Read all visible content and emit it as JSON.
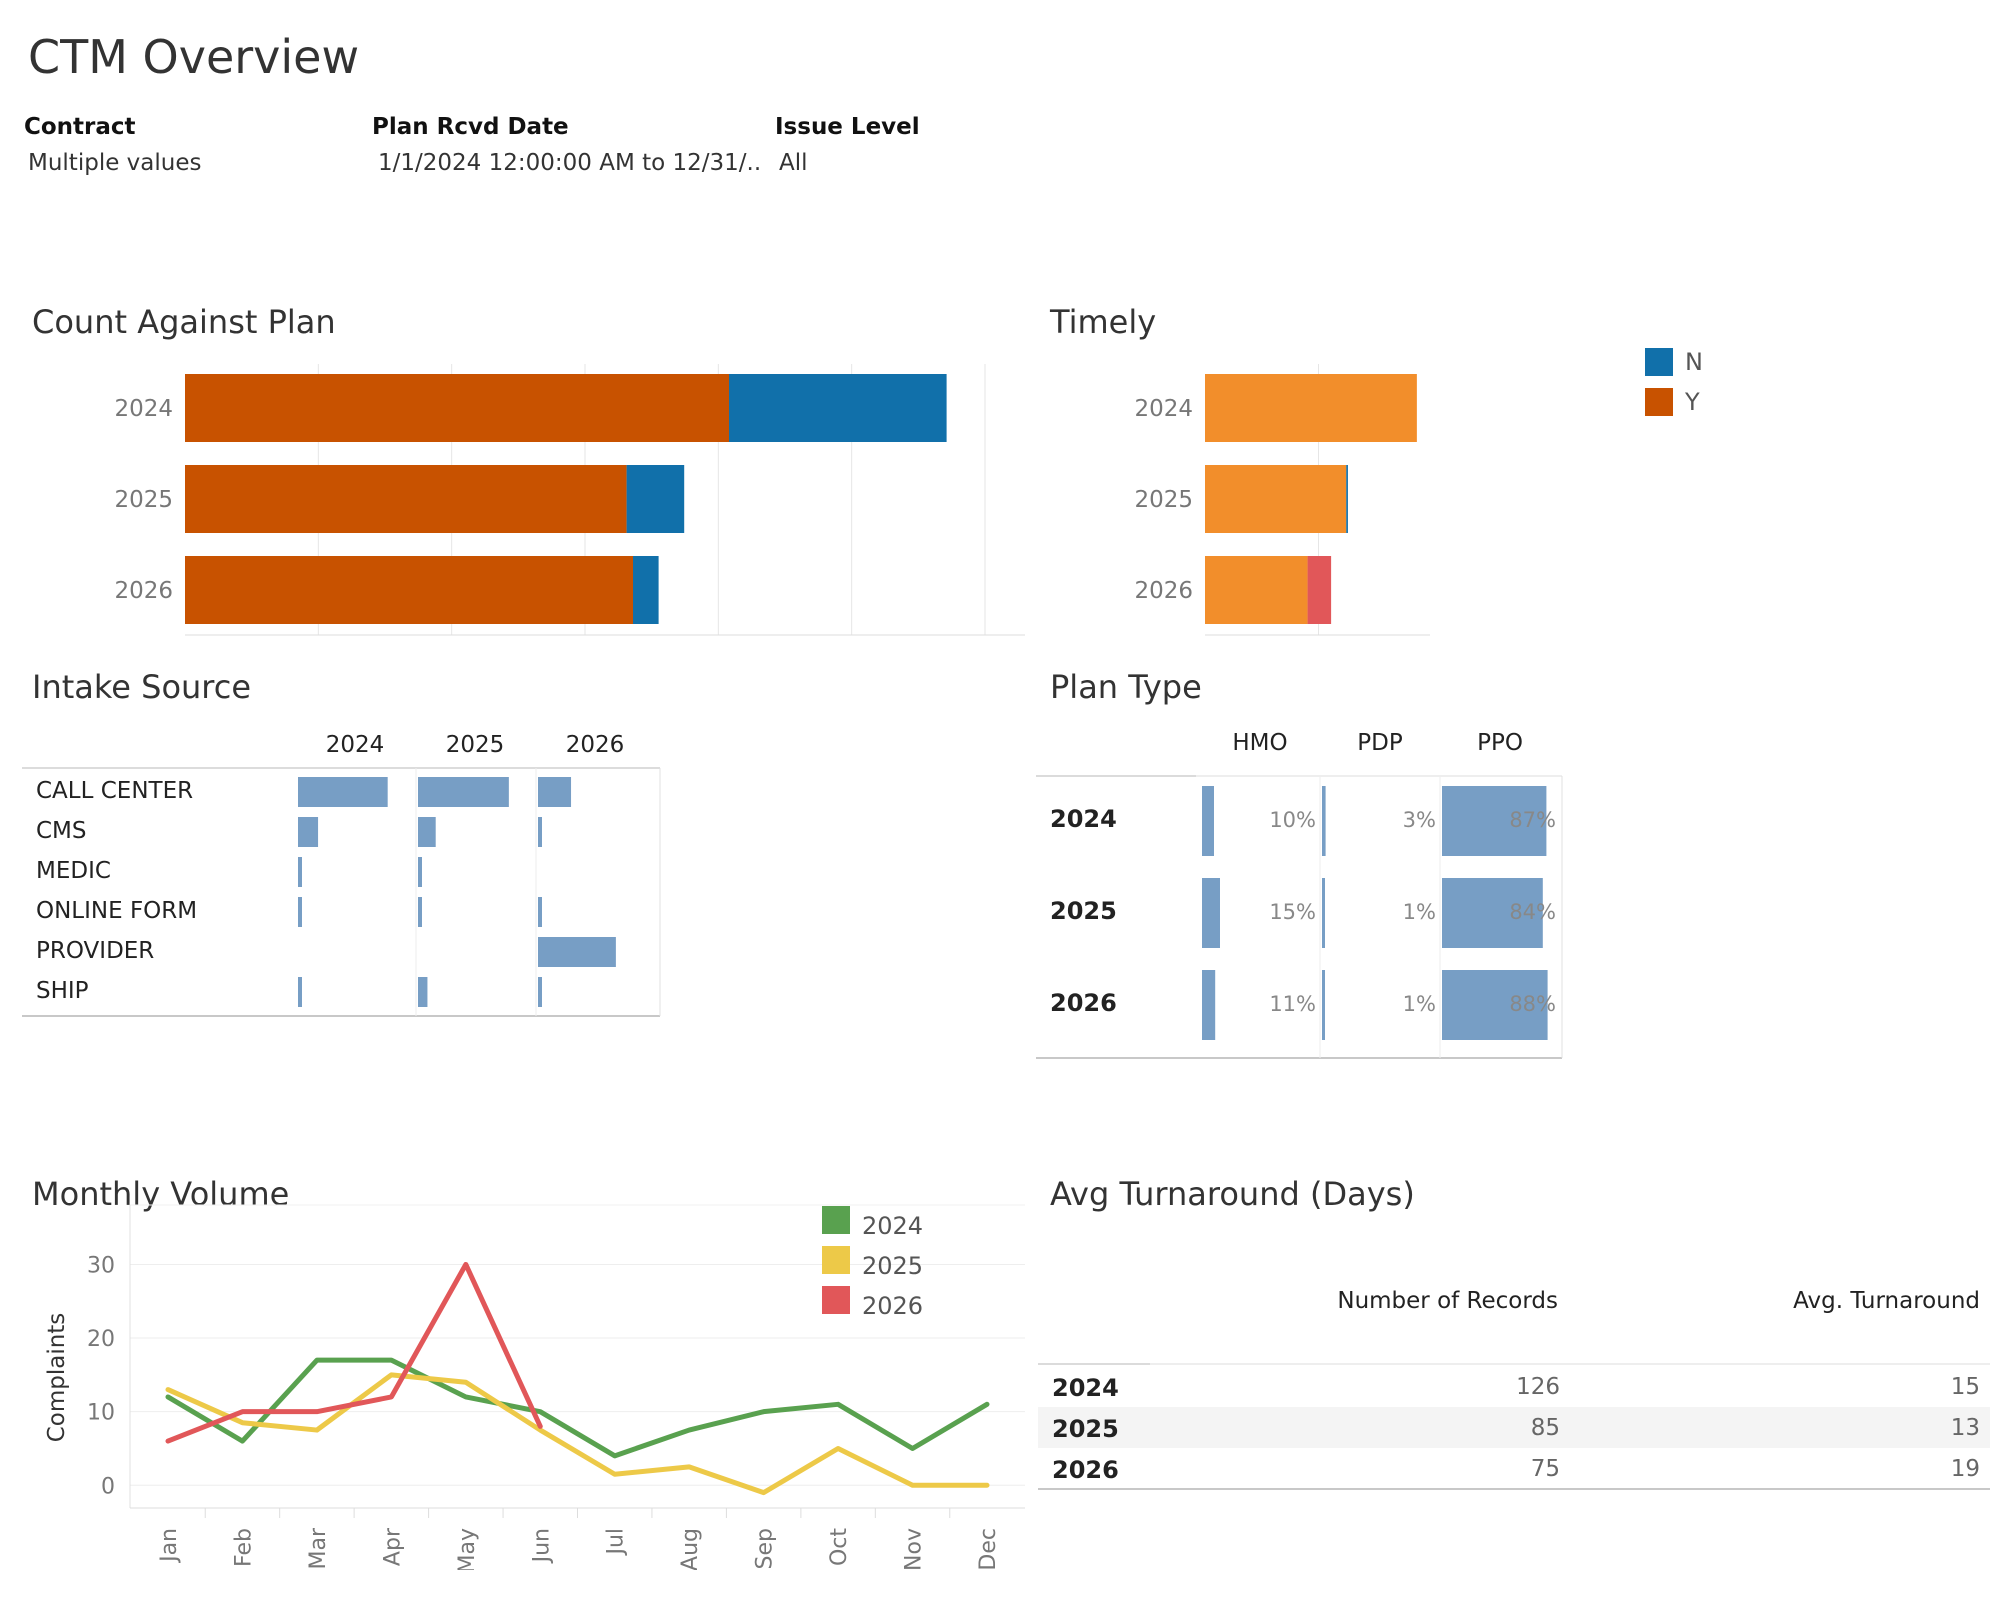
{
  "title": "CTM Overview",
  "filters": [
    {
      "label": "Contract",
      "value": "Multiple values"
    },
    {
      "label": "Plan Rcvd Date",
      "value": "1/1/2024 12:00:00 AM to 12/31/.."
    },
    {
      "label": "Issue Level",
      "value": "All"
    }
  ],
  "legend_ny": [
    {
      "name": "N",
      "color": "#1170aa"
    },
    {
      "name": "Y",
      "color": "#c85200"
    }
  ],
  "chart_data": [
    {
      "id": "count-against-plan",
      "type": "bar",
      "orientation": "horizontal",
      "stacked": true,
      "title": "Count Against Plan",
      "categories": [
        "2024",
        "2025",
        "2026"
      ],
      "series": [
        {
          "name": "Y",
          "color": "#c85200",
          "values": [
            85,
            69,
            70
          ]
        },
        {
          "name": "N",
          "color": "#1170aa",
          "values": [
            34,
            9,
            4
          ]
        }
      ],
      "xlim": [
        0,
        125
      ],
      "grid": true
    },
    {
      "id": "timely",
      "type": "bar",
      "orientation": "horizontal",
      "stacked": true,
      "title": "Timely",
      "categories": [
        "2024",
        "2025",
        "2026"
      ],
      "series": [
        {
          "color": "#f28e2b",
          "values": [
            126,
            84,
            61
          ]
        },
        {
          "color": "#1170aa",
          "values": [
            0,
            1,
            0
          ]
        },
        {
          "color": "#e15759",
          "values": [
            0,
            0,
            14
          ]
        }
      ],
      "xlim": [
        0,
        135
      ],
      "grid": true
    },
    {
      "id": "intake-source",
      "type": "bar",
      "title": "Intake Source",
      "columns": [
        "2024",
        "2025",
        "2026"
      ],
      "rows": [
        "CALL CENTER",
        "CMS",
        "MEDIC",
        "ONLINE FORM",
        "PROVIDER",
        "SHIP"
      ],
      "values": [
        [
          0.76,
          0.17,
          0.02,
          0.02,
          0.0,
          0.03
        ],
        [
          0.77,
          0.15,
          0.02,
          0.02,
          0.0,
          0.08
        ],
        [
          0.28,
          0.03,
          0.0,
          0.03,
          0.66,
          0.03
        ]
      ]
    },
    {
      "id": "plan-type",
      "type": "bar",
      "title": "Plan Type",
      "columns": [
        "HMO",
        "PDP",
        "PPO"
      ],
      "rows": [
        "2024",
        "2025",
        "2026"
      ],
      "values": [
        [
          10,
          3,
          87
        ],
        [
          15,
          1,
          84
        ],
        [
          11,
          1,
          88
        ]
      ],
      "labels": [
        [
          "10%",
          "3%",
          "87%"
        ],
        [
          "15%",
          "1%",
          "84%"
        ],
        [
          "11%",
          "1%",
          "88%"
        ]
      ]
    },
    {
      "id": "monthly-volume",
      "type": "line",
      "title": "Monthly Volume",
      "ylabel": "Complaints",
      "categories": [
        "Jan",
        "Feb",
        "Mar",
        "Apr",
        "May",
        "Jun",
        "Jul",
        "Aug",
        "Sep",
        "Oct",
        "Nov",
        "Dec"
      ],
      "ylim": [
        -2,
        34
      ],
      "yticks": [
        0,
        10,
        20,
        30
      ],
      "series": [
        {
          "name": "2024",
          "color": "#59a14f",
          "values": [
            12,
            6,
            17,
            17,
            12,
            10,
            4,
            7.5,
            10,
            11,
            5,
            11
          ]
        },
        {
          "name": "2025",
          "color": "#edc948",
          "values": [
            13,
            8.5,
            7.5,
            15,
            14,
            7.5,
            1.5,
            2.5,
            -1,
            5,
            0,
            0
          ]
        },
        {
          "name": "2026",
          "color": "#e15759",
          "values": [
            6,
            10,
            10,
            12,
            30,
            8,
            null,
            null,
            null,
            null,
            null,
            null
          ]
        }
      ],
      "legend": "top-right",
      "grid": true
    },
    {
      "id": "avg-turnaround",
      "type": "table",
      "title": "Avg Turnaround (Days)",
      "columns": [
        "Number of Records",
        "Avg. Turnaround"
      ],
      "rows": [
        {
          "year": "2024",
          "records": "126",
          "avg": "15"
        },
        {
          "year": "2025",
          "records": "85",
          "avg": "13"
        },
        {
          "year": "2026",
          "records": "75",
          "avg": "19"
        }
      ]
    }
  ]
}
